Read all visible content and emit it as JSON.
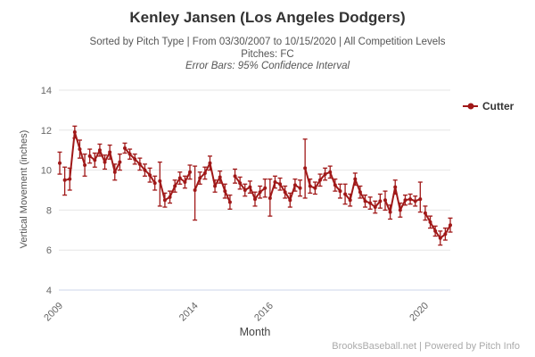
{
  "header": {
    "title": "Kenley Jansen (Los Angeles Dodgers)",
    "subtitle1": "Sorted by Pitch Type | From 03/30/2007 to 10/15/2020 | All Competition Levels",
    "subtitle2": "Pitches: FC",
    "subtitle3": "Error Bars: 95% Confidence Interval"
  },
  "legend": {
    "label": "Cutter",
    "color": "#A01818"
  },
  "footer": {
    "credit": "BrooksBaseball.net | Powered by Pitch Info"
  },
  "chart_data": {
    "type": "line",
    "title": "Kenley Jansen (Los Angeles Dodgers)",
    "series_name": "Cutter",
    "xlabel": "Month",
    "ylabel": "Vertical Movement (inches)",
    "ylim": [
      4,
      14
    ],
    "y_ticks": [
      14,
      12,
      10,
      8,
      6,
      4
    ],
    "x_ticks": [
      "2009",
      "2014",
      "2016",
      "2020"
    ],
    "grid": true,
    "legend_position": "right-top",
    "error_bars": "95% Confidence Interval",
    "colors": {
      "series": "#A01818",
      "grid": "#E6E6E6",
      "axis_line": "#CCD6EB",
      "tick_text": "#666666"
    },
    "seasons": [
      {
        "year": "2009",
        "points": [
          {
            "m": "2009-03",
            "v": 10.35,
            "lo": 9.8,
            "hi": 10.9
          }
        ]
      },
      {
        "year": "2010",
        "points": [
          {
            "m": "2010-06",
            "v": 9.5,
            "lo": 8.75,
            "hi": 10.15
          },
          {
            "m": "2010-07",
            "v": 9.55,
            "lo": 9.0,
            "hi": 10.1
          },
          {
            "m": "2010-08",
            "v": 11.9,
            "lo": 11.6,
            "hi": 12.2
          },
          {
            "m": "2010-09",
            "v": 11.05,
            "lo": 10.6,
            "hi": 11.5
          },
          {
            "m": "2010-10",
            "v": 10.25,
            "lo": 9.7,
            "hi": 10.8
          }
        ]
      },
      {
        "year": "2011",
        "points": [
          {
            "m": "2011-04",
            "v": 10.7,
            "lo": 10.35,
            "hi": 11.05
          },
          {
            "m": "2011-05",
            "v": 10.5,
            "lo": 10.15,
            "hi": 10.85
          },
          {
            "m": "2011-06",
            "v": 11.0,
            "lo": 10.7,
            "hi": 11.3
          },
          {
            "m": "2011-07",
            "v": 10.4,
            "lo": 10.05,
            "hi": 10.75
          },
          {
            "m": "2011-08",
            "v": 10.9,
            "lo": 10.55,
            "hi": 11.25
          },
          {
            "m": "2011-09",
            "v": 9.9,
            "lo": 9.5,
            "hi": 10.3
          },
          {
            "m": "2011-10",
            "v": 10.4,
            "lo": 10.0,
            "hi": 10.8
          }
        ]
      },
      {
        "year": "2012",
        "points": [
          {
            "m": "2012-04",
            "v": 11.1,
            "lo": 10.85,
            "hi": 11.35
          },
          {
            "m": "2012-05",
            "v": 10.8,
            "lo": 10.55,
            "hi": 11.05
          },
          {
            "m": "2012-06",
            "v": 10.55,
            "lo": 10.3,
            "hi": 10.8
          },
          {
            "m": "2012-07",
            "v": 10.3,
            "lo": 10.0,
            "hi": 10.6
          },
          {
            "m": "2012-08",
            "v": 10.0,
            "lo": 9.7,
            "hi": 10.3
          },
          {
            "m": "2012-09",
            "v": 9.75,
            "lo": 9.4,
            "hi": 10.1
          },
          {
            "m": "2012-10",
            "v": 9.35,
            "lo": 9.0,
            "hi": 9.7
          }
        ]
      },
      {
        "year": "2013",
        "points": [
          {
            "m": "2013-04",
            "v": 9.45,
            "lo": 8.2,
            "hi": 10.4
          },
          {
            "m": "2013-05",
            "v": 8.5,
            "lo": 8.15,
            "hi": 8.85
          },
          {
            "m": "2013-06",
            "v": 8.65,
            "lo": 8.35,
            "hi": 8.95
          },
          {
            "m": "2013-07",
            "v": 9.2,
            "lo": 8.9,
            "hi": 9.5
          },
          {
            "m": "2013-08",
            "v": 9.6,
            "lo": 9.3,
            "hi": 9.9
          },
          {
            "m": "2013-09",
            "v": 9.4,
            "lo": 9.1,
            "hi": 9.7
          },
          {
            "m": "2013-10",
            "v": 9.9,
            "lo": 9.55,
            "hi": 10.25
          }
        ]
      },
      {
        "year": "2014",
        "points": [
          {
            "m": "2014-03",
            "v": 9.0,
            "lo": 7.5,
            "hi": 10.2
          },
          {
            "m": "2014-04",
            "v": 9.6,
            "lo": 9.3,
            "hi": 9.9
          },
          {
            "m": "2014-05",
            "v": 9.85,
            "lo": 9.55,
            "hi": 10.15
          },
          {
            "m": "2014-06",
            "v": 10.35,
            "lo": 10.0,
            "hi": 10.7
          },
          {
            "m": "2014-07",
            "v": 9.2,
            "lo": 8.9,
            "hi": 9.5
          },
          {
            "m": "2014-08",
            "v": 9.65,
            "lo": 9.35,
            "hi": 9.95
          },
          {
            "m": "2014-09",
            "v": 8.95,
            "lo": 8.6,
            "hi": 9.3
          },
          {
            "m": "2014-10",
            "v": 8.4,
            "lo": 8.05,
            "hi": 8.75
          }
        ]
      },
      {
        "year": "2015",
        "points": [
          {
            "m": "2015-04",
            "v": 9.7,
            "lo": 9.35,
            "hi": 10.05
          },
          {
            "m": "2015-05",
            "v": 9.35,
            "lo": 9.05,
            "hi": 9.65
          },
          {
            "m": "2015-06",
            "v": 9.0,
            "lo": 8.7,
            "hi": 9.3
          },
          {
            "m": "2015-07",
            "v": 9.15,
            "lo": 8.85,
            "hi": 9.45
          },
          {
            "m": "2015-08",
            "v": 8.55,
            "lo": 8.2,
            "hi": 8.9
          },
          {
            "m": "2015-09",
            "v": 8.9,
            "lo": 8.6,
            "hi": 9.2
          },
          {
            "m": "2015-10",
            "v": 9.1,
            "lo": 8.65,
            "hi": 9.55
          }
        ]
      },
      {
        "year": "2016",
        "points": [
          {
            "m": "2016-04",
            "v": 8.6,
            "lo": 7.7,
            "hi": 9.55
          },
          {
            "m": "2016-05",
            "v": 9.4,
            "lo": 9.1,
            "hi": 9.7
          },
          {
            "m": "2016-06",
            "v": 9.3,
            "lo": 9.0,
            "hi": 9.6
          },
          {
            "m": "2016-07",
            "v": 8.9,
            "lo": 8.6,
            "hi": 9.2
          },
          {
            "m": "2016-08",
            "v": 8.5,
            "lo": 8.15,
            "hi": 8.85
          },
          {
            "m": "2016-09",
            "v": 9.25,
            "lo": 8.95,
            "hi": 9.55
          },
          {
            "m": "2016-10",
            "v": 9.1,
            "lo": 8.7,
            "hi": 9.5
          }
        ]
      },
      {
        "year": "2017",
        "points": [
          {
            "m": "2017-03",
            "v": 10.1,
            "lo": 8.6,
            "hi": 11.55
          },
          {
            "m": "2017-04",
            "v": 9.2,
            "lo": 8.85,
            "hi": 9.55
          },
          {
            "m": "2017-05",
            "v": 9.1,
            "lo": 8.8,
            "hi": 9.4
          },
          {
            "m": "2017-06",
            "v": 9.5,
            "lo": 9.2,
            "hi": 9.8
          },
          {
            "m": "2017-07",
            "v": 9.8,
            "lo": 9.5,
            "hi": 10.1
          },
          {
            "m": "2017-08",
            "v": 9.9,
            "lo": 9.6,
            "hi": 10.2
          },
          {
            "m": "2017-09",
            "v": 9.25,
            "lo": 8.95,
            "hi": 9.55
          },
          {
            "m": "2017-10",
            "v": 8.95,
            "lo": 8.6,
            "hi": 9.3
          }
        ]
      },
      {
        "year": "2018",
        "points": [
          {
            "m": "2018-03",
            "v": 8.8,
            "lo": 8.3,
            "hi": 9.3
          },
          {
            "m": "2018-04",
            "v": 8.5,
            "lo": 8.2,
            "hi": 8.8
          },
          {
            "m": "2018-05",
            "v": 9.55,
            "lo": 9.25,
            "hi": 9.85
          },
          {
            "m": "2018-06",
            "v": 8.9,
            "lo": 8.6,
            "hi": 9.2
          },
          {
            "m": "2018-07",
            "v": 8.45,
            "lo": 8.15,
            "hi": 8.75
          },
          {
            "m": "2018-08",
            "v": 8.35,
            "lo": 8.05,
            "hi": 8.65
          },
          {
            "m": "2018-09",
            "v": 8.15,
            "lo": 7.85,
            "hi": 8.45
          },
          {
            "m": "2018-10",
            "v": 8.45,
            "lo": 8.1,
            "hi": 8.8
          }
        ]
      },
      {
        "year": "2019",
        "points": [
          {
            "m": "2019-03",
            "v": 8.5,
            "lo": 8.0,
            "hi": 8.95
          },
          {
            "m": "2019-04",
            "v": 7.9,
            "lo": 7.55,
            "hi": 8.25
          },
          {
            "m": "2019-05",
            "v": 9.15,
            "lo": 8.8,
            "hi": 9.5
          },
          {
            "m": "2019-06",
            "v": 8.0,
            "lo": 7.65,
            "hi": 8.35
          },
          {
            "m": "2019-07",
            "v": 8.5,
            "lo": 8.25,
            "hi": 8.75
          },
          {
            "m": "2019-08",
            "v": 8.55,
            "lo": 8.3,
            "hi": 8.8
          },
          {
            "m": "2019-09",
            "v": 8.45,
            "lo": 8.2,
            "hi": 8.7
          },
          {
            "m": "2019-10",
            "v": 8.55,
            "lo": 7.9,
            "hi": 9.4
          }
        ]
      },
      {
        "year": "2020",
        "points": [
          {
            "m": "2020-05",
            "v": 7.85,
            "lo": 7.5,
            "hi": 8.2
          },
          {
            "m": "2020-06",
            "v": 7.4,
            "lo": 7.1,
            "hi": 7.7
          },
          {
            "m": "2020-07",
            "v": 6.95,
            "lo": 6.7,
            "hi": 7.2
          },
          {
            "m": "2020-08",
            "v": 6.6,
            "lo": 6.25,
            "hi": 6.95
          },
          {
            "m": "2020-09",
            "v": 6.8,
            "lo": 6.5,
            "hi": 7.1
          },
          {
            "m": "2020-10",
            "v": 7.25,
            "lo": 6.9,
            "hi": 7.6
          }
        ]
      }
    ]
  }
}
